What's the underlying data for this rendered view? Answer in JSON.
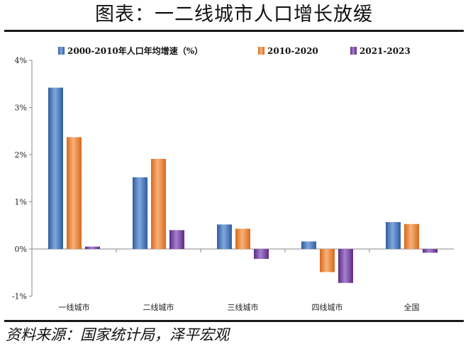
{
  "title": "图表：一二线城市人口增长放缓",
  "source": "资料来源：国家统计局，泽平宏观",
  "colors": {
    "series_1": "#4a7cc2",
    "series_2": "#f08a3a",
    "series_3": "#7c4aa8"
  },
  "chart_data": {
    "type": "bar",
    "categories": [
      "一线城市",
      "二线城市",
      "三线城市",
      "四线城市",
      "全国"
    ],
    "series": [
      {
        "name": "2000-2010年人口年均增速（%）",
        "values": [
          3.42,
          1.52,
          0.52,
          0.16,
          0.57
        ]
      },
      {
        "name": "2010-2020",
        "values": [
          2.37,
          1.91,
          0.43,
          -0.49,
          0.53
        ]
      },
      {
        "name": "2021-2023",
        "values": [
          0.05,
          0.4,
          -0.21,
          -0.72,
          -0.08
        ]
      }
    ],
    "yticks": [
      "-1%",
      "0%",
      "1%",
      "2%",
      "3%",
      "4%"
    ],
    "ylim": [
      -1,
      4
    ],
    "ylabel": "",
    "xlabel": "",
    "grid": false,
    "legend_position": "top"
  }
}
